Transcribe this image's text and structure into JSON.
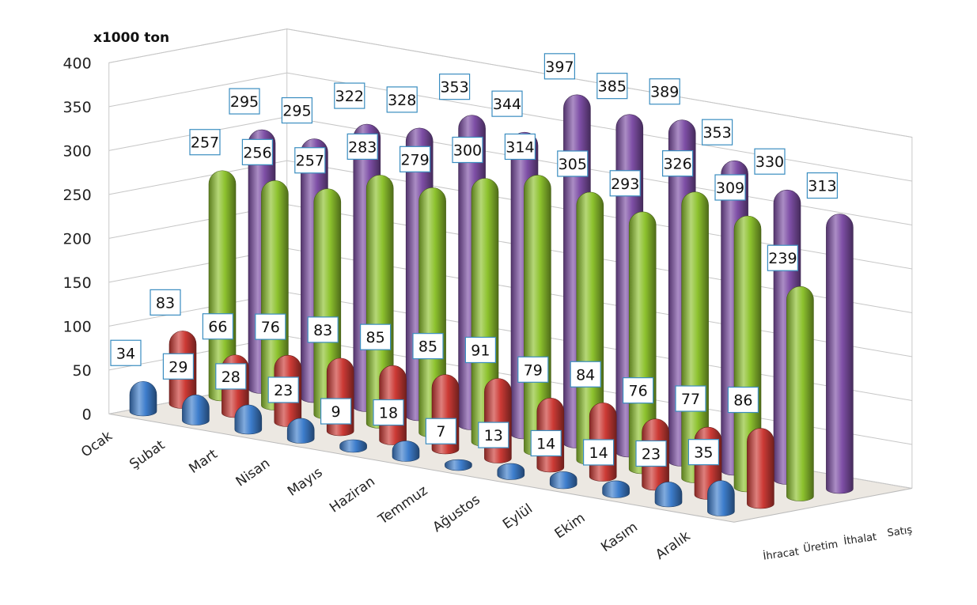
{
  "chart_data": {
    "type": "bar",
    "unit_label": "x1000 ton",
    "categories": [
      "Ocak",
      "Şubat",
      "Mart",
      "Nisan",
      "Mayıs",
      "Haziran",
      "Temmuz",
      "Ağustos",
      "Eylül",
      "Ekim",
      "Kasım",
      "Aralık"
    ],
    "series": [
      {
        "name": "İhracat",
        "color": "#3d7dcc",
        "values": [
          34,
          29,
          28,
          23,
          9,
          18,
          7,
          13,
          14,
          14,
          23,
          35
        ]
      },
      {
        "name": "Üretim",
        "color": "#cc3a35",
        "values": [
          83,
          66,
          76,
          83,
          85,
          85,
          91,
          79,
          84,
          76,
          77,
          86
        ]
      },
      {
        "name": "İthalat",
        "color": "#8dc22e",
        "values": [
          257,
          256,
          257,
          283,
          279,
          300,
          314,
          305,
          293,
          326,
          309,
          239
        ]
      },
      {
        "name": "Satış",
        "color": "#7e4fa6",
        "values": [
          295,
          295,
          322,
          328,
          353,
          344,
          397,
          385,
          389,
          353,
          330,
          313
        ]
      }
    ],
    "ylim": [
      0,
      400
    ],
    "yticks": [
      0,
      50,
      100,
      150,
      200,
      250,
      300,
      350,
      400
    ],
    "grid": true,
    "data_labels": true
  }
}
